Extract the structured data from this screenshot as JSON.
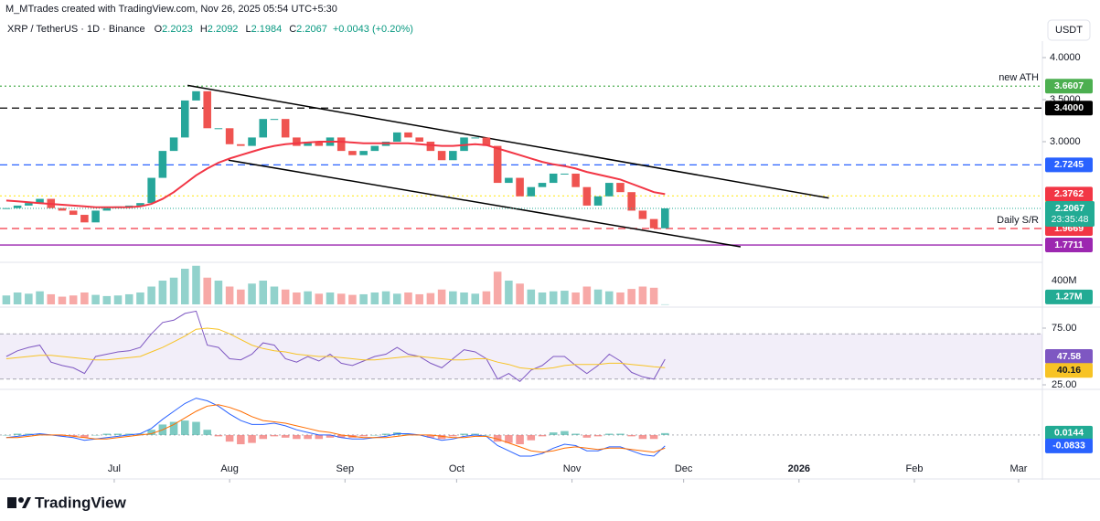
{
  "header": {
    "attribution": "M_MTrades created with TradingView.com, Nov 26, 2025 05:54 UTC+5:30",
    "symbol": "XRP / TetherUS · 1D · Binance",
    "ohlc": [
      {
        "k": "O",
        "v": "2.2023"
      },
      {
        "k": "H",
        "v": "2.2092"
      },
      {
        "k": "L",
        "v": "2.1984"
      },
      {
        "k": "C",
        "v": "2.2067"
      }
    ],
    "change": "+0.0043 (+0.20%)",
    "currency": "USDT",
    "logo": "TradingView"
  },
  "chart_data": {
    "type": "candlestick",
    "up_color": "#26a69a",
    "down_color": "#ef5350",
    "x": [
      152,
      155,
      158,
      161,
      164,
      167,
      170,
      173,
      176,
      179,
      182,
      185,
      188,
      191,
      194,
      197,
      200,
      203,
      206,
      209,
      212,
      215,
      218,
      221,
      224,
      227,
      230,
      233,
      236,
      239,
      242,
      245,
      248,
      251,
      254,
      257,
      260,
      263,
      266,
      269,
      272,
      275,
      278,
      281,
      284,
      287,
      290,
      293,
      296,
      299,
      302,
      305,
      308,
      311,
      314,
      317,
      320,
      323,
      326,
      329
    ],
    "xlim": [
      150.3,
      430.4
    ],
    "xticks": [
      {
        "value": 181,
        "label": "Jul"
      },
      {
        "value": 212,
        "label": "Aug"
      },
      {
        "value": 243,
        "label": "Sep"
      },
      {
        "value": 273,
        "label": "Oct"
      },
      {
        "value": 304,
        "label": "Nov"
      },
      {
        "value": 334,
        "label": "Dec"
      },
      {
        "value": 365,
        "label": "2026"
      },
      {
        "value": 396,
        "label": "Feb"
      },
      {
        "value": 424,
        "label": "Mar"
      }
    ],
    "close": [
      2.21,
      2.24,
      2.27,
      2.32,
      2.21,
      2.18,
      2.13,
      2.04,
      2.18,
      2.21,
      2.23,
      2.24,
      2.27,
      2.57,
      2.89,
      3.05,
      3.49,
      3.6,
      3.16,
      3.16,
      2.97,
      2.95,
      3.05,
      3.27,
      3.27,
      3.05,
      2.95,
      3.0,
      2.95,
      3.05,
      2.89,
      2.84,
      2.89,
      2.95,
      3.0,
      3.11,
      3.05,
      3.0,
      2.89,
      2.78,
      2.89,
      3.05,
      3.05,
      2.95,
      2.51,
      2.57,
      2.35,
      2.46,
      2.51,
      2.62,
      2.62,
      2.46,
      2.24,
      2.35,
      2.51,
      2.4,
      2.18,
      2.08,
      1.97,
      2.2067
    ],
    "countdown": "23:35:48",
    "last_color": "#22ab94",
    "ylim": [
      1.565,
      4.196
    ],
    "yticks": [
      {
        "value": 4,
        "label": "4.0000"
      },
      {
        "value": 3.5,
        "label": "3.5000"
      },
      {
        "value": 3,
        "label": "3.0000"
      }
    ],
    "ma": {
      "color": "#f23645",
      "values": [
        2.3,
        2.29,
        2.28,
        2.27,
        2.26,
        2.25,
        2.24,
        2.23,
        2.22,
        2.22,
        2.22,
        2.22,
        2.23,
        2.26,
        2.32,
        2.4,
        2.5,
        2.6,
        2.68,
        2.75,
        2.8,
        2.84,
        2.88,
        2.92,
        2.95,
        2.97,
        2.98,
        2.99,
        3.0,
        3.0,
        3.0,
        2.99,
        2.98,
        2.98,
        2.98,
        2.98,
        2.98,
        2.97,
        2.96,
        2.95,
        2.95,
        2.96,
        2.97,
        2.96,
        2.92,
        2.88,
        2.84,
        2.8,
        2.76,
        2.73,
        2.71,
        2.68,
        2.64,
        2.61,
        2.58,
        2.55,
        2.5,
        2.45,
        2.4,
        2.3762
      ]
    },
    "levels": [
      {
        "price": 3.6607,
        "color": "#4caf50",
        "style": "dotted",
        "note": "new ATH"
      },
      {
        "price": 3.4,
        "price_label": "3.4000",
        "color": "#000000",
        "style": "dashed"
      },
      {
        "price": 2.7245,
        "color": "#2962ff",
        "style": "dashed"
      },
      {
        "price": 2.3547,
        "color": "#ffeb3b",
        "style": "dotted"
      },
      {
        "price": 1.9669,
        "color": "#f23645",
        "style": "dashed",
        "note": "Daily S/R"
      },
      {
        "price": 1.7711,
        "color": "#9c27b0",
        "style": "solid"
      }
    ],
    "trendlines": [
      {
        "x": [
          200.7,
          373
        ],
        "y": [
          3.67,
          2.33
        ]
      },
      {
        "x": [
          211.7,
          349.3
        ],
        "y": [
          2.78,
          1.75
        ]
      }
    ],
    "volume": {
      "ylim": [
        0,
        708
      ],
      "yticks": [
        {
          "value": 400,
          "label": "400M"
        }
      ],
      "values": [
        150,
        200,
        180,
        220,
        170,
        130,
        150,
        200,
        160,
        140,
        150,
        170,
        200,
        300,
        400,
        450,
        600,
        650,
        450,
        400,
        300,
        250,
        350,
        400,
        300,
        250,
        200,
        220,
        180,
        200,
        180,
        160,
        170,
        200,
        220,
        180,
        200,
        170,
        190,
        250,
        220,
        200,
        180,
        220,
        550,
        400,
        350,
        250,
        200,
        220,
        230,
        200,
        300,
        250,
        220,
        200,
        260,
        300,
        280,
        1.27
      ],
      "value_labels": [
        null,
        null,
        null,
        null,
        null,
        null,
        null,
        null,
        null,
        null,
        null,
        null,
        null,
        null,
        null,
        null,
        null,
        null,
        null,
        null,
        null,
        null,
        null,
        null,
        null,
        null,
        null,
        null,
        null,
        null,
        null,
        null,
        null,
        null,
        null,
        null,
        null,
        null,
        null,
        null,
        null,
        null,
        null,
        null,
        null,
        null,
        null,
        null,
        null,
        null,
        null,
        null,
        null,
        null,
        null,
        null,
        null,
        null,
        null,
        "1.27M"
      ]
    },
    "rsi": {
      "ylim": [
        23.4,
        90.3
      ],
      "yticks": [
        {
          "value": 75,
          "label": "75.00"
        },
        {
          "value": 25,
          "label": "25.00"
        }
      ],
      "band": [
        70,
        30
      ],
      "series": [
        {
          "color": "#7e57c2",
          "values": [
            50,
            55,
            58,
            60,
            45,
            42,
            40,
            35,
            50,
            52,
            54,
            55,
            58,
            70,
            80,
            82,
            88,
            90,
            60,
            58,
            48,
            47,
            52,
            62,
            60,
            48,
            45,
            50,
            46,
            52,
            44,
            42,
            46,
            50,
            52,
            58,
            52,
            50,
            44,
            40,
            48,
            56,
            54,
            48,
            30,
            35,
            28,
            38,
            42,
            50,
            50,
            42,
            35,
            42,
            52,
            46,
            36,
            32,
            30,
            47.58
          ]
        },
        {
          "color": "#f7c325",
          "values": [
            48,
            49,
            50,
            51,
            51,
            50,
            49,
            48,
            47,
            47,
            48,
            49,
            50,
            54,
            58,
            63,
            68,
            74,
            75,
            74,
            70,
            65,
            60,
            57,
            55,
            54,
            52,
            51,
            50,
            50,
            49,
            48,
            47,
            47,
            48,
            49,
            50,
            50,
            49,
            48,
            47,
            47,
            48,
            48,
            45,
            43,
            40,
            39,
            39,
            40,
            42,
            43,
            43,
            43,
            44,
            44,
            43,
            42,
            41,
            40.16
          ]
        }
      ]
    },
    "macd": {
      "ylim": [
        -0.306,
        0.333
      ],
      "histogram": {
        "pos_color": "#26a69a",
        "neg_color": "#ef5350",
        "values": [
          0,
          0.01,
          0.01,
          0.01,
          0,
          -0.01,
          -0.01,
          -0.02,
          0,
          0.01,
          0.01,
          0.01,
          0.01,
          0.04,
          0.08,
          0.1,
          0.11,
          0.1,
          0.04,
          -0.01,
          -0.05,
          -0.07,
          -0.06,
          -0.03,
          -0.01,
          -0.02,
          -0.03,
          -0.03,
          -0.03,
          -0.02,
          -0.02,
          -0.02,
          -0.01,
          0,
          0.01,
          0.02,
          0.01,
          0,
          -0.02,
          -0.03,
          -0.01,
          0.01,
          0.01,
          0,
          -0.05,
          -0.06,
          -0.07,
          -0.04,
          -0.01,
          0.02,
          0.03,
          0.01,
          -0.02,
          -0.01,
          0.01,
          0.01,
          -0.01,
          -0.03,
          -0.03,
          0.0144
        ]
      },
      "series": [
        {
          "color": "#2962ff",
          "values": [
            -0.02,
            -0.01,
            0.0,
            0.01,
            0.0,
            -0.01,
            -0.02,
            -0.04,
            -0.03,
            -0.02,
            -0.01,
            0.0,
            0.01,
            0.05,
            0.12,
            0.18,
            0.24,
            0.28,
            0.26,
            0.22,
            0.16,
            0.11,
            0.08,
            0.08,
            0.09,
            0.07,
            0.04,
            0.02,
            0.0,
            0.0,
            -0.02,
            -0.03,
            -0.03,
            -0.02,
            -0.01,
            0.01,
            0.01,
            0.0,
            -0.02,
            -0.04,
            -0.03,
            -0.01,
            0.0,
            -0.01,
            -0.08,
            -0.12,
            -0.16,
            -0.16,
            -0.14,
            -0.1,
            -0.07,
            -0.08,
            -0.12,
            -0.12,
            -0.09,
            -0.09,
            -0.12,
            -0.15,
            -0.16,
            -0.0833
          ]
        },
        {
          "color": "#ff6d00",
          "values": [
            -0.02,
            -0.02,
            -0.01,
            0.0,
            0.0,
            0.0,
            -0.01,
            -0.02,
            -0.03,
            -0.03,
            -0.02,
            -0.01,
            0.0,
            0.01,
            0.04,
            0.08,
            0.13,
            0.18,
            0.22,
            0.23,
            0.21,
            0.18,
            0.14,
            0.11,
            0.1,
            0.09,
            0.07,
            0.05,
            0.03,
            0.02,
            0.0,
            -0.01,
            -0.02,
            -0.02,
            -0.02,
            -0.01,
            0.0,
            0.0,
            0.0,
            -0.01,
            -0.02,
            -0.02,
            -0.01,
            -0.01,
            -0.03,
            -0.06,
            -0.09,
            -0.12,
            -0.13,
            -0.12,
            -0.1,
            -0.09,
            -0.1,
            -0.11,
            -0.1,
            -0.1,
            -0.11,
            -0.12,
            -0.13,
            -0.1
          ]
        }
      ]
    }
  }
}
